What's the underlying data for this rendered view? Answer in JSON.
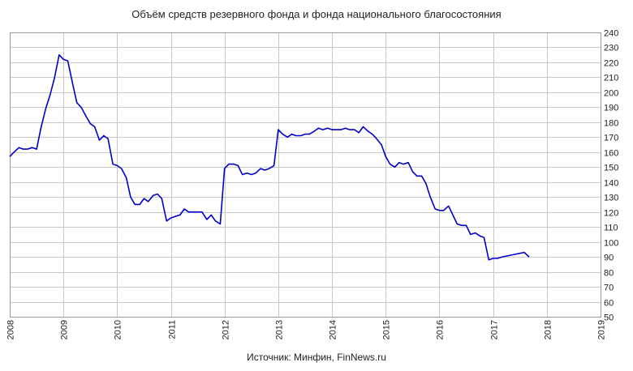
{
  "chart_data": {
    "type": "line",
    "title": "Объём средств резервного фонда и фонда национального благосостояния",
    "source": "Источник: Минфин, FinNews.ru",
    "xlabel": "",
    "ylabel": "",
    "xlim": [
      2008,
      2019
    ],
    "ylim": [
      50,
      240
    ],
    "y_axis_position": "right",
    "grid": true,
    "x_ticks": [
      "2008",
      "2009",
      "2010",
      "2011",
      "2012",
      "2013",
      "2014",
      "2015",
      "2016",
      "2017",
      "2018",
      "2019"
    ],
    "y_ticks": [
      50,
      60,
      70,
      80,
      90,
      100,
      110,
      120,
      130,
      140,
      150,
      160,
      170,
      180,
      190,
      200,
      210,
      220,
      230,
      240
    ],
    "series": [
      {
        "color": "#0000cc",
        "x": [
          2008.0,
          2008.08,
          2008.17,
          2008.25,
          2008.33,
          2008.42,
          2008.5,
          2008.58,
          2008.67,
          2008.75,
          2008.83,
          2008.92,
          2009.0,
          2009.08,
          2009.17,
          2009.25,
          2009.33,
          2009.42,
          2009.5,
          2009.58,
          2009.67,
          2009.75,
          2009.83,
          2009.92,
          2010.0,
          2010.08,
          2010.17,
          2010.25,
          2010.33,
          2010.42,
          2010.5,
          2010.58,
          2010.67,
          2010.75,
          2010.83,
          2010.92,
          2011.0,
          2011.08,
          2011.17,
          2011.25,
          2011.33,
          2011.42,
          2011.5,
          2011.58,
          2011.67,
          2011.75,
          2011.83,
          2011.92,
          2012.0,
          2012.08,
          2012.17,
          2012.25,
          2012.33,
          2012.42,
          2012.5,
          2012.58,
          2012.67,
          2012.75,
          2012.83,
          2012.92,
          2013.0,
          2013.08,
          2013.17,
          2013.25,
          2013.33,
          2013.42,
          2013.5,
          2013.58,
          2013.67,
          2013.75,
          2013.83,
          2013.92,
          2014.0,
          2014.08,
          2014.17,
          2014.25,
          2014.33,
          2014.42,
          2014.5,
          2014.58,
          2014.67,
          2014.75,
          2014.83,
          2014.92,
          2015.0,
          2015.08,
          2015.17,
          2015.25,
          2015.33,
          2015.42,
          2015.5,
          2015.58,
          2015.67,
          2015.75,
          2015.83,
          2015.92,
          2016.0,
          2016.08,
          2016.17,
          2016.25,
          2016.33,
          2016.42,
          2016.5,
          2016.58,
          2016.67,
          2016.75,
          2016.83,
          2016.92,
          2017.0,
          2017.08,
          2017.17,
          2017.58,
          2017.67
        ],
        "values": [
          157,
          160,
          163,
          162,
          162,
          163,
          162,
          176,
          189,
          198,
          209,
          225,
          222,
          221,
          206,
          193,
          190,
          184,
          179,
          177,
          168,
          171,
          169,
          152,
          151,
          149,
          143,
          130,
          125,
          125,
          129,
          127,
          131,
          132,
          129,
          114,
          116,
          117,
          118,
          122,
          120,
          120,
          120,
          120,
          115,
          118,
          114,
          112,
          149,
          152,
          152,
          151,
          145,
          146,
          145,
          146,
          149,
          148,
          149,
          151,
          175,
          172,
          170,
          172,
          171,
          171,
          172,
          172,
          174,
          176,
          175,
          176,
          175,
          175,
          175,
          176,
          175,
          175,
          173,
          177,
          174,
          172,
          169,
          165,
          157,
          152,
          150,
          153,
          152,
          153,
          147,
          144,
          144,
          139,
          130,
          122,
          121,
          121,
          124,
          118,
          112,
          111,
          111,
          105,
          106,
          104,
          103,
          88,
          89,
          89,
          90,
          93,
          90
        ]
      }
    ]
  }
}
